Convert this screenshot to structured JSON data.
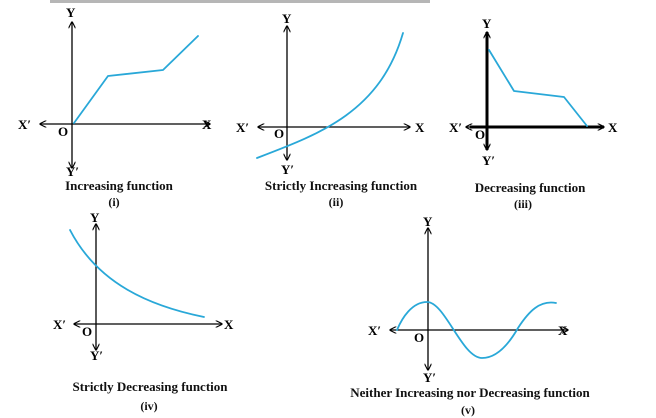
{
  "colors": {
    "curve": "#29a8d8",
    "axis": "#000000",
    "text": "#111111"
  },
  "axes": {
    "x": "X",
    "x_neg": "X′",
    "y": "Y",
    "y_neg": "Y′",
    "origin": "O"
  },
  "panels": [
    {
      "id": "i",
      "caption": "Increasing function",
      "numeral": "(i)"
    },
    {
      "id": "ii",
      "caption": "Strictly Increasing function",
      "numeral": "(ii)"
    },
    {
      "id": "iii",
      "caption": "Decreasing function",
      "numeral": "(iii)"
    },
    {
      "id": "iv",
      "caption": "Strictly Decreasing function",
      "numeral": "(iv)"
    },
    {
      "id": "v",
      "caption": "Neither Increasing nor Decreasing function",
      "numeral": "(v)"
    }
  ]
}
